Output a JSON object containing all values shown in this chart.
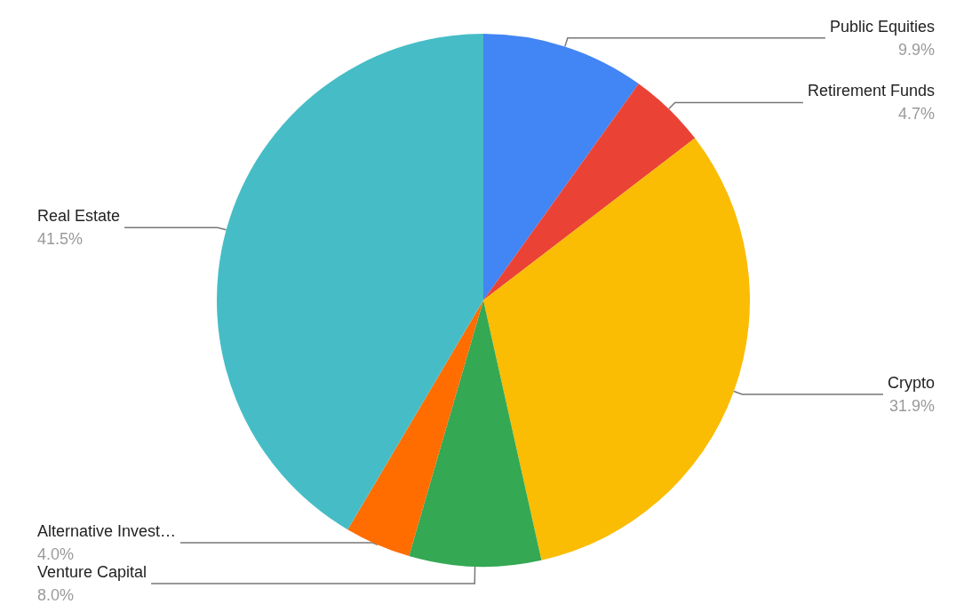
{
  "chart_data": {
    "type": "pie",
    "categories": [
      "Public Equities",
      "Retirement Funds",
      "Crypto",
      "Venture Capital",
      "Alternative Invest…",
      "Real Estate"
    ],
    "values": [
      9.9,
      4.7,
      31.9,
      8.0,
      4.0,
      41.5
    ],
    "value_labels": [
      "9.9%",
      "4.7%",
      "31.9%",
      "8.0%",
      "4.0%",
      "41.5%"
    ],
    "colors": [
      "#4285f4",
      "#ea4335",
      "#fbbc04",
      "#34a853",
      "#ff6d01",
      "#46bdc6"
    ],
    "legend": false
  }
}
